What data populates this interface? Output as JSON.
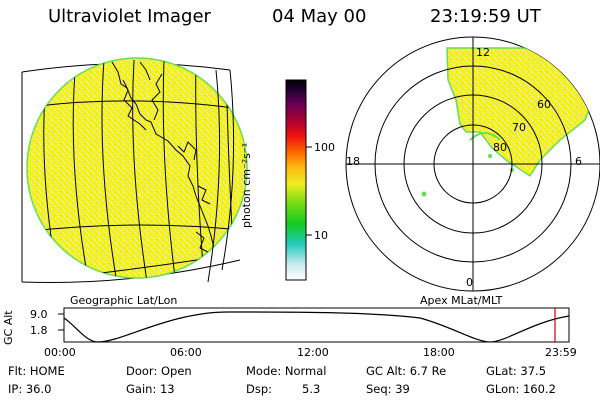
{
  "header": {
    "instrument": "Ultraviolet Imager",
    "date": "04 May 00",
    "time": "23:19:59 UT"
  },
  "colorbar": {
    "label": "photon cm⁻²s⁻¹",
    "ticks": [
      "100",
      "10"
    ]
  },
  "left_panel": {
    "caption": "Geographic Lat/Lon"
  },
  "right_panel": {
    "caption": "Apex MLat/MLT",
    "mlt_labels": {
      "top": "12",
      "left": "18",
      "right": "6",
      "bottom": "0"
    },
    "lat_labels": [
      "60",
      "70",
      "80"
    ]
  },
  "timeline": {
    "y_label": "GC Alt",
    "y_ticks": [
      "9.0",
      "1.8"
    ],
    "x_ticks": [
      "00:00",
      "06:00",
      "12:00",
      "18:00",
      "23:59"
    ],
    "marker_time": "23:20"
  },
  "status": {
    "flt": "Flt: HOME",
    "ip": "IP: 36.0",
    "door": "Door: Open",
    "gain": "Gain: 13",
    "mode": "Mode: Normal",
    "dsp_label": "Dsp:",
    "dsp_value": "5.3",
    "gc_alt": "GC Alt: 6.7 Re",
    "seq": "Seq: 39",
    "glat": "GLat: 37.5",
    "glon": "GLon: 160.2"
  },
  "colors": {
    "image_fill": "#f2f21a",
    "image_edge": "#66dd55",
    "marker": "#cc0000"
  }
}
